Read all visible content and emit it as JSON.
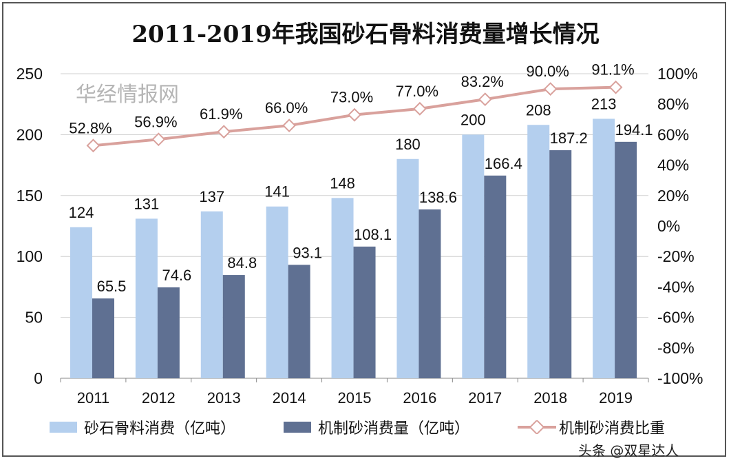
{
  "chart_data": {
    "type": "bar",
    "title": "2011-2019年我国砂石骨料消费量增长情况",
    "categories": [
      "2011",
      "2012",
      "2013",
      "2014",
      "2015",
      "2016",
      "2017",
      "2018",
      "2019"
    ],
    "series": [
      {
        "name": "砂石骨料消费（亿吨）",
        "type": "bar",
        "axis": "left",
        "color": "#b4cfee",
        "values": [
          124,
          131,
          137,
          141,
          148,
          180,
          200,
          208,
          213
        ]
      },
      {
        "name": "机制砂消费量（亿吨）",
        "type": "bar",
        "axis": "left",
        "color": "#5f7092",
        "values": [
          65.5,
          74.6,
          84.8,
          93.1,
          108.1,
          138.6,
          166.4,
          187.2,
          194.1
        ]
      },
      {
        "name": "机制砂消费比重",
        "type": "line",
        "axis": "right",
        "color": "#d9a19c",
        "values": [
          52.8,
          56.9,
          61.9,
          66.0,
          73.0,
          77.0,
          83.2,
          90.0,
          91.1
        ],
        "labels": [
          "52.8%",
          "56.9%",
          "61.9%",
          "66.0%",
          "73.0%",
          "77.0%",
          "83.2%",
          "90.0%",
          "91.1%"
        ]
      }
    ],
    "left_axis": {
      "ylim": [
        0,
        250
      ],
      "ticks": [
        "0",
        "50",
        "100",
        "150",
        "200",
        "250"
      ]
    },
    "right_axis": {
      "ylim": [
        -100,
        100
      ],
      "ticks": [
        "-100%",
        "-80%",
        "-60%",
        "-40%",
        "-20%",
        "0%",
        "20%",
        "40%",
        "60%",
        "80%",
        "100%"
      ]
    },
    "grid": true,
    "legend": "bottom"
  },
  "watermarks": {
    "site": "华经情报网",
    "author": "头条 @双星达人"
  }
}
